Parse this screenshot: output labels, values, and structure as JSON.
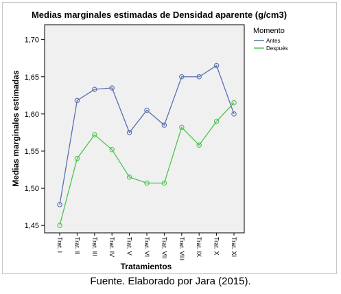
{
  "chart_data": {
    "type": "line",
    "title": "Medias marginales estimadas de Densidad aparente (g/cm3)",
    "xlabel": "Tratamientos",
    "ylabel": "Medias marginales estimadas",
    "categories": [
      "Trat. I",
      "Trat. II",
      "Trat. III",
      "Trat. IV",
      "Trat. V",
      "Trat. VI",
      "Trat. VII",
      "Trat. VIII",
      "Trat. IX",
      "Trat. X",
      "Trat. XI"
    ],
    "ylim": [
      1.44,
      1.72
    ],
    "yticks": [
      1.45,
      1.5,
      1.55,
      1.6,
      1.65,
      1.7
    ],
    "ytick_labels": [
      "1,45",
      "1,50",
      "1,55",
      "1,60",
      "1,65",
      "1,70"
    ],
    "grid": false,
    "legend": {
      "title": "Momento",
      "placement": "right"
    },
    "series": [
      {
        "name": "Antes",
        "color": "#5a6fb0",
        "values": [
          1.478,
          1.618,
          1.633,
          1.635,
          1.575,
          1.605,
          1.585,
          1.65,
          1.65,
          1.665,
          1.6
        ]
      },
      {
        "name": "Después",
        "color": "#4cc44c",
        "values": [
          1.45,
          1.54,
          1.572,
          1.552,
          1.515,
          1.507,
          1.507,
          1.582,
          1.558,
          1.59,
          1.615
        ]
      }
    ]
  },
  "caption": "Fuente. Elaborado por Jara (2015)."
}
